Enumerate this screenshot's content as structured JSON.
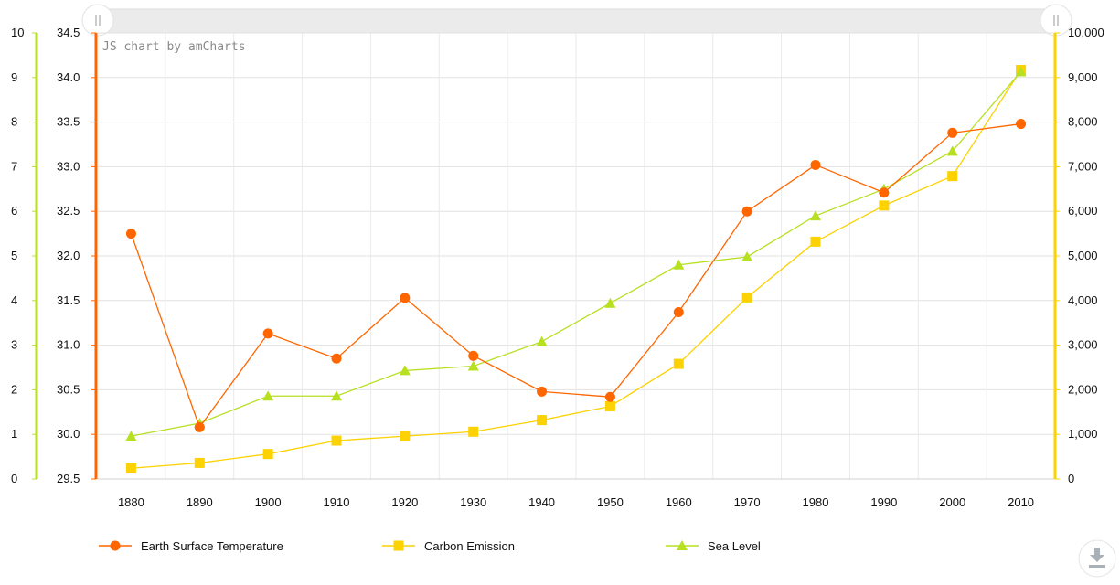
{
  "chart_data": {
    "type": "line",
    "title": "",
    "credit": "JS chart by amCharts",
    "categories": [
      "1880",
      "1890",
      "1900",
      "1910",
      "1920",
      "1930",
      "1940",
      "1950",
      "1960",
      "1970",
      "1980",
      "1990",
      "2000",
      "2010"
    ],
    "axes": {
      "sea_level": {
        "position": "left-outer",
        "color": "#b7e021",
        "min": 0,
        "max": 10,
        "step": 1,
        "ticks": [
          "0",
          "1",
          "2",
          "3",
          "4",
          "5",
          "6",
          "7",
          "8",
          "9",
          "10"
        ]
      },
      "temperature": {
        "position": "left-inner",
        "color": "#ff6600",
        "min": 29.5,
        "max": 34.5,
        "step": 0.5,
        "ticks": [
          "29.5",
          "30.0",
          "30.5",
          "31.0",
          "31.5",
          "32.0",
          "32.5",
          "33.0",
          "33.5",
          "34.0",
          "34.5"
        ]
      },
      "carbon": {
        "position": "right",
        "color": "#fcd202",
        "min": 0,
        "max": 10000,
        "step": 1000,
        "ticks": [
          "0",
          "1,000",
          "2,000",
          "3,000",
          "4,000",
          "5,000",
          "6,000",
          "7,000",
          "8,000",
          "9,000",
          "10,000"
        ]
      }
    },
    "series": [
      {
        "name": "Earth Surface Temperature",
        "axis": "temperature",
        "marker": "circle",
        "color": "#ff6600",
        "values": [
          32.25,
          30.08,
          31.13,
          30.85,
          31.53,
          30.88,
          30.48,
          30.42,
          31.37,
          32.5,
          33.02,
          32.71,
          33.38,
          33.48
        ]
      },
      {
        "name": "Carbon Emission",
        "axis": "carbon",
        "marker": "square",
        "color": "#fcd202",
        "values": [
          240,
          360,
          560,
          860,
          960,
          1060,
          1320,
          1630,
          2580,
          4070,
          5320,
          6130,
          6790,
          9170
        ]
      },
      {
        "name": "Sea Level",
        "axis": "sea_level",
        "marker": "triangle",
        "color": "#b7e021",
        "values": [
          0.96,
          1.25,
          1.86,
          1.86,
          2.43,
          2.53,
          3.08,
          3.94,
          4.8,
          4.98,
          5.9,
          6.5,
          7.35,
          9.13
        ]
      }
    ],
    "grid": true,
    "legend_position": "bottom-left"
  }
}
